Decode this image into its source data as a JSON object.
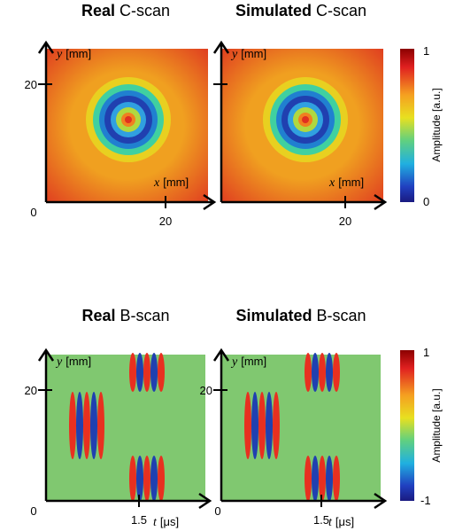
{
  "panels": [
    {
      "title_bold": "Real",
      "title_rest": "C-scan",
      "y_var": "y",
      "y_unit": "[mm]",
      "x_var": "x",
      "x_unit": "[mm]",
      "origin": "0",
      "y_tick": "20",
      "x_tick": "20"
    },
    {
      "title_bold": "Simulated",
      "title_rest": "C-scan",
      "y_var": "y",
      "y_unit": "[mm]",
      "x_var": "x",
      "x_unit": "[mm]",
      "x_tick": "20"
    },
    {
      "title_bold": "Real",
      "title_rest": "B-scan",
      "y_var": "y",
      "y_unit": "[mm]",
      "x_var": "t",
      "x_unit": "[μs]",
      "origin": "0",
      "y_tick": "20",
      "x_tick": "1.5"
    },
    {
      "title_bold": "Simulated",
      "title_rest": "B-scan",
      "y_var": "y",
      "y_unit": "[mm]",
      "x_var": "t",
      "x_unit": "[μs]",
      "origin": "0",
      "y_tick": "20",
      "x_tick": "1.5"
    }
  ],
  "colorbars": [
    {
      "label": "Amplitude [a.u.]",
      "max": "1",
      "min": "0"
    },
    {
      "label": "Amplitude [a.u.]",
      "max": "1",
      "min": "-1"
    }
  ]
}
